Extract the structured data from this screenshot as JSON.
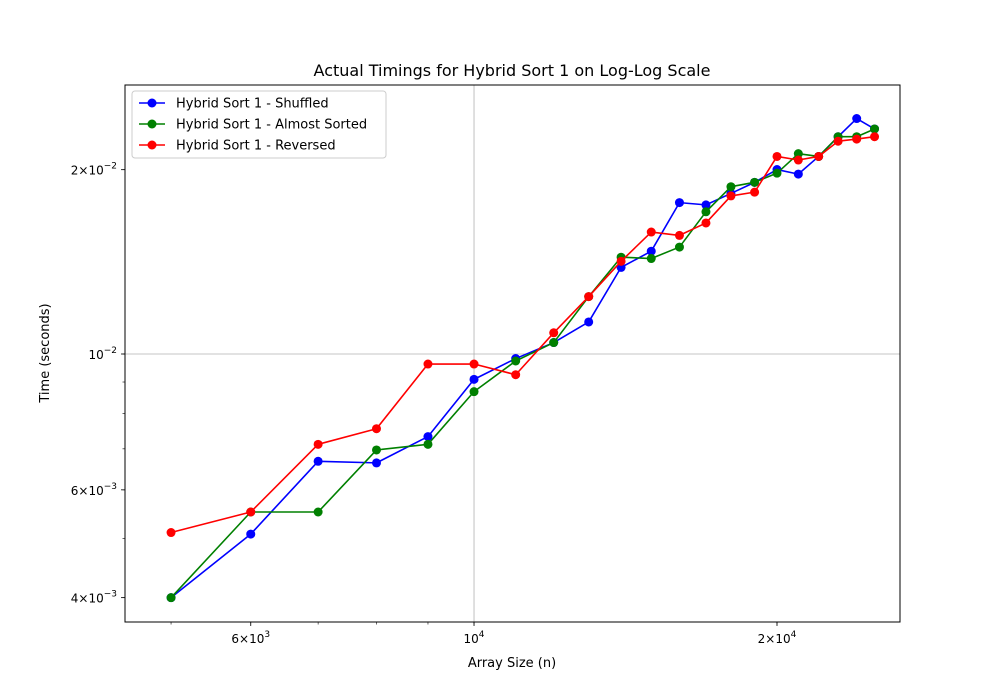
{
  "chart_data": {
    "type": "line",
    "title": "Actual Timings for Hybrid Sort 1 on Log-Log Scale",
    "xlabel": "Array Size (n)",
    "ylabel": "Time (seconds)",
    "xscale": "log",
    "yscale": "log",
    "xlim": [
      4500,
      26500
    ],
    "ylim": [
      0.00365,
      0.0275
    ],
    "grid": "major",
    "legend_position": "top-left",
    "x_ticks": [
      {
        "value": 6000,
        "base": "6",
        "exp": "10",
        "sup": "3"
      },
      {
        "value": 10000,
        "base": "10",
        "exp": "",
        "sup": "4"
      },
      {
        "value": 20000,
        "base": "2",
        "exp": "10",
        "sup": "4"
      }
    ],
    "y_ticks": [
      {
        "value": 0.004,
        "base": "4",
        "exp": "10",
        "sup": "−3"
      },
      {
        "value": 0.006,
        "base": "6",
        "exp": "10",
        "sup": "−3"
      },
      {
        "value": 0.01,
        "base": "10",
        "exp": "",
        "sup": "−2"
      },
      {
        "value": 0.02,
        "base": "2",
        "exp": "10",
        "sup": "−2"
      }
    ],
    "x_grid": [
      10000
    ],
    "y_grid": [
      0.01
    ],
    "x": [
      5000,
      6000,
      7000,
      8000,
      9000,
      10000,
      11000,
      12000,
      13000,
      14000,
      15000,
      16000,
      17000,
      18000,
      19000,
      20000,
      21000,
      22000,
      23000,
      24000,
      25000
    ],
    "series": [
      {
        "name": "Hybrid Sort 1 - Shuffled",
        "color": "#0000ff",
        "values": [
          0.004,
          0.00508,
          0.00668,
          0.00664,
          0.00733,
          0.00909,
          0.00983,
          0.01044,
          0.01128,
          0.01385,
          0.01472,
          0.01767,
          0.01752,
          0.01829,
          0.01907,
          0.02001,
          0.01967,
          0.02102,
          0.02264,
          0.02424,
          0.02331
        ]
      },
      {
        "name": "Hybrid Sort 1 - Almost Sorted",
        "color": "#008000",
        "values": [
          0.004,
          0.00552,
          0.00552,
          0.00697,
          0.00712,
          0.00868,
          0.00974,
          0.01044,
          0.01241,
          0.01439,
          0.01432,
          0.01495,
          0.01707,
          0.01876,
          0.01907,
          0.01974,
          0.02124,
          0.02102,
          0.02264,
          0.02264,
          0.02331
        ]
      },
      {
        "name": "Hybrid Sort 1 - Reversed",
        "color": "#ff0000",
        "values": [
          0.00511,
          0.00552,
          0.00712,
          0.00755,
          0.00963,
          0.00963,
          0.00925,
          0.01083,
          0.01241,
          0.01417,
          0.01582,
          0.01562,
          0.01637,
          0.01812,
          0.01838,
          0.02102,
          0.02074,
          0.02102,
          0.02226,
          0.02244,
          0.02264
        ]
      }
    ]
  }
}
